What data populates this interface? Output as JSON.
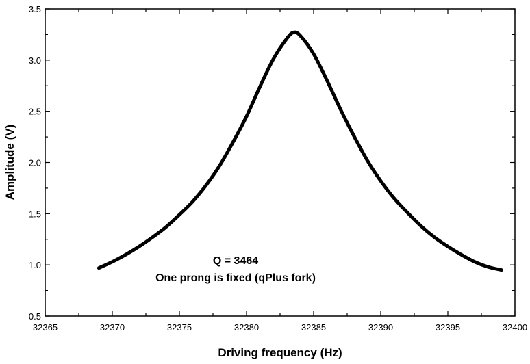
{
  "chart_data": {
    "type": "line",
    "xlabel": "Driving frequency (Hz)",
    "ylabel": "Amplitude (V)",
    "xlim": [
      32365,
      32400
    ],
    "ylim": [
      0.5,
      3.5
    ],
    "x_ticks": [
      32365,
      32370,
      32375,
      32380,
      32385,
      32390,
      32395,
      32400
    ],
    "y_ticks": [
      "0.5",
      "1.0",
      "1.5",
      "2.0",
      "2.5",
      "3.0",
      "3.5"
    ],
    "grid": false,
    "annotations": [
      "Q = 3464",
      "One prong is fixed (qPlus fork)"
    ],
    "series": [
      {
        "color": "#000000",
        "x": [
          32369.0,
          32370.0,
          32371.0,
          32372.0,
          32373.0,
          32374.0,
          32375.0,
          32376.0,
          32377.0,
          32378.0,
          32379.0,
          32380.0,
          32381.0,
          32382.0,
          32383.0,
          32383.5,
          32384.0,
          32385.0,
          32386.0,
          32387.0,
          32388.0,
          32389.0,
          32390.0,
          32391.0,
          32392.0,
          32393.0,
          32394.0,
          32395.0,
          32396.0,
          32397.0,
          32398.0,
          32399.0
        ],
        "y": [
          0.97,
          1.03,
          1.1,
          1.18,
          1.27,
          1.37,
          1.49,
          1.62,
          1.78,
          1.97,
          2.2,
          2.45,
          2.74,
          3.01,
          3.21,
          3.27,
          3.24,
          3.06,
          2.8,
          2.52,
          2.26,
          2.02,
          1.82,
          1.65,
          1.51,
          1.38,
          1.27,
          1.18,
          1.1,
          1.03,
          0.98,
          0.95
        ]
      }
    ]
  }
}
